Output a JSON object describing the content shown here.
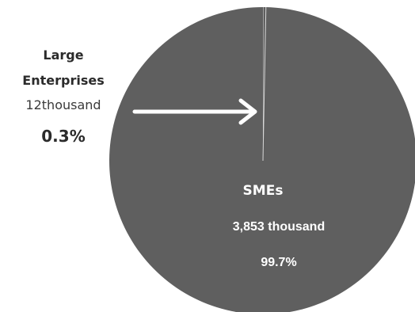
{
  "chart_data": {
    "type": "pie",
    "categories": [
      "Large Enterprises",
      "SMEs"
    ],
    "values": [
      12,
      3853
    ],
    "value_unit": "thousand",
    "percentages": [
      0.3,
      99.7
    ],
    "colors": {
      "pie_fill": "#5f5f5f",
      "divider": "#d8d8d8",
      "arrow": "#ffffff",
      "inside_text": "#ffffff",
      "outside_text": "#2b2b2b"
    },
    "labels": {
      "large": {
        "name_line1": "Large",
        "name_line2": "Enterprises",
        "value_text": "12thousand",
        "percent_text": "0.3%"
      },
      "sme": {
        "name": "SMEs",
        "value_text": "3,853 thousand",
        "percent_text": "99.7%"
      }
    }
  }
}
